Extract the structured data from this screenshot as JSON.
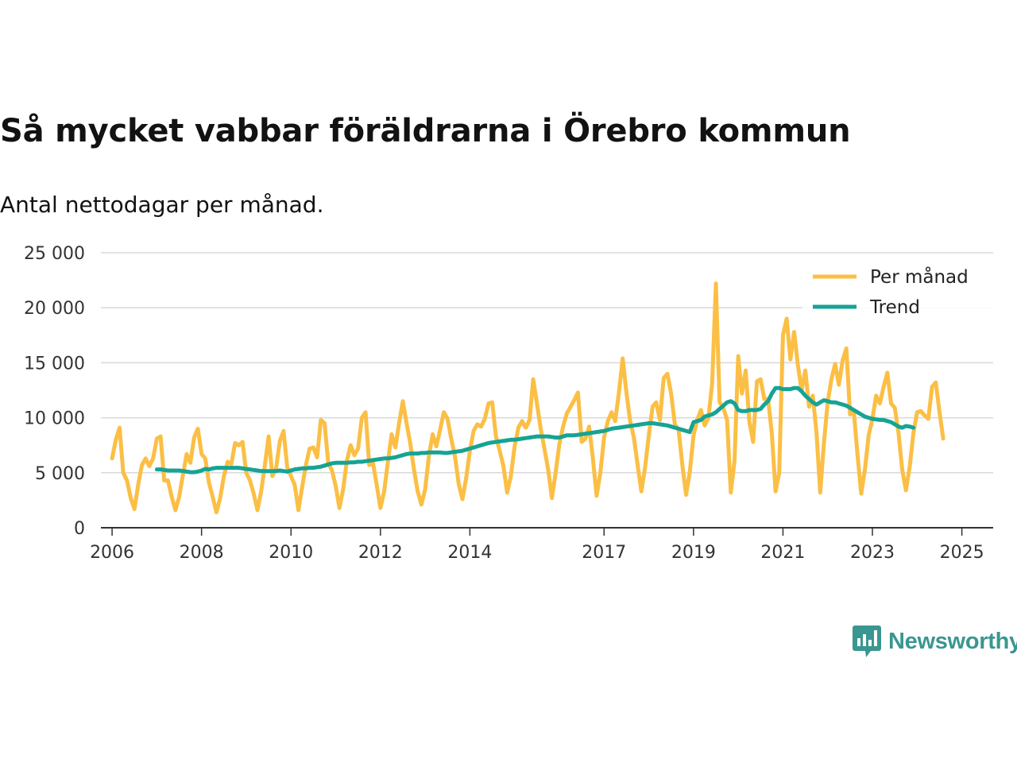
{
  "title": "Så mycket vabbar föräldrarna i Örebro kommun",
  "subtitle": "Antal nettodagar per månad.",
  "brand": {
    "name": "Newsworthy",
    "icon": "newsworthy-logo-icon",
    "color": "#3a9690"
  },
  "chart_data": {
    "type": "line",
    "title": "Så mycket vabbar föräldrarna i Örebro kommun",
    "subtitle": "Antal nettodagar per månad.",
    "xlabel": "",
    "ylabel": "",
    "ylim": [
      0,
      25000
    ],
    "xlim": [
      2005.75,
      2025.7
    ],
    "y_ticks": [
      0,
      5000,
      10000,
      15000,
      20000,
      25000
    ],
    "y_tick_labels": [
      "0",
      "5 000",
      "10 000",
      "15 000",
      "20 000",
      "25 000"
    ],
    "x_ticks": [
      2006,
      2008,
      2010,
      2012,
      2014,
      2017,
      2019,
      2021,
      2023,
      2025
    ],
    "x_tick_labels": [
      "2006",
      "2008",
      "2010",
      "2012",
      "2014",
      "2017",
      "2019",
      "2021",
      "2023",
      "2025"
    ],
    "grid": true,
    "legend_position": "top-right",
    "x_start": 2006.0,
    "x_step": 0.0833333,
    "series": [
      {
        "name": "Per månad",
        "color": "#fbbf45",
        "start": 2006.0,
        "step": 0.0833333,
        "values": [
          6300,
          8000,
          9100,
          5000,
          4300,
          2700,
          1700,
          3900,
          5700,
          6300,
          5600,
          6300,
          8100,
          8300,
          4300,
          4300,
          2800,
          1600,
          2800,
          4800,
          6700,
          5900,
          8200,
          9000,
          6700,
          6300,
          4100,
          2800,
          1400,
          2700,
          4700,
          6000,
          5800,
          7700,
          7500,
          7800,
          5000,
          4300,
          3100,
          1600,
          3300,
          5700,
          8300,
          4700,
          5400,
          7900,
          8800,
          5500,
          4700,
          3900,
          1600,
          3700,
          5700,
          7200,
          7300,
          6400,
          9800,
          9500,
          5900,
          5200,
          3800,
          1800,
          3500,
          6100,
          7500,
          6600,
          7200,
          10000,
          10500,
          5700,
          5900,
          3900,
          1800,
          3300,
          6000,
          8500,
          7300,
          9500,
          11500,
          9500,
          7700,
          5300,
          3300,
          2100,
          3500,
          6500,
          8500,
          7400,
          8900,
          10500,
          9900,
          8100,
          6500,
          4000,
          2600,
          4500,
          7000,
          8800,
          9400,
          9200,
          9900,
          11300,
          11400,
          8300,
          7000,
          5600,
          3200,
          4700,
          7400,
          9100,
          9700,
          9100,
          9800,
          13500,
          11300,
          9000,
          7200,
          5300,
          2700,
          5000,
          7600,
          9200,
          10400,
          11000,
          11600,
          12300,
          7800,
          8100,
          9200,
          6300,
          2900,
          5000,
          8200,
          9700,
          10500,
          9700,
          12300,
          15400,
          12300,
          9700,
          8200,
          5700,
          3300,
          5500,
          8400,
          11000,
          11400,
          9800,
          13600,
          14000,
          12200,
          9400,
          8900,
          5700,
          3000,
          5100,
          8400,
          9800,
          10700,
          9300,
          10000,
          13100,
          22200,
          11400,
          10900,
          9800,
          3200,
          6100,
          15600,
          12200,
          14300,
          9600,
          7800,
          13300,
          13500,
          11700,
          11700,
          8600,
          3300,
          5000,
          17500,
          19000,
          15300,
          17800,
          14800,
          12500,
          14300,
          11000,
          12000,
          8600,
          3200,
          7700,
          11400,
          13500,
          14900,
          13000,
          15200,
          16300,
          10300,
          10600,
          6600,
          3100,
          5300,
          8400,
          9900,
          12000,
          11300,
          12800,
          14100,
          11300,
          10900,
          8600,
          5300,
          3400,
          5500,
          8600,
          10500,
          10600,
          10200,
          9900,
          12800,
          13200,
          10500,
          8100
        ]
      },
      {
        "name": "Trend",
        "color": "#16a394",
        "start": 2007.0,
        "step": 0.0833333,
        "values": [
          5300,
          5300,
          5250,
          5200,
          5200,
          5200,
          5200,
          5150,
          5100,
          5050,
          5050,
          5100,
          5200,
          5350,
          5300,
          5400,
          5450,
          5450,
          5450,
          5450,
          5450,
          5450,
          5450,
          5400,
          5350,
          5300,
          5250,
          5200,
          5150,
          5150,
          5150,
          5150,
          5150,
          5200,
          5150,
          5100,
          5200,
          5300,
          5350,
          5400,
          5400,
          5450,
          5450,
          5500,
          5550,
          5650,
          5750,
          5850,
          5900,
          5900,
          5900,
          5900,
          5950,
          5950,
          6000,
          6000,
          6050,
          6100,
          6150,
          6200,
          6250,
          6300,
          6300,
          6350,
          6400,
          6500,
          6600,
          6700,
          6750,
          6750,
          6750,
          6800,
          6800,
          6850,
          6850,
          6850,
          6850,
          6800,
          6800,
          6850,
          6900,
          6950,
          7000,
          7100,
          7200,
          7300,
          7400,
          7500,
          7600,
          7700,
          7750,
          7800,
          7850,
          7900,
          7950,
          8000,
          8000,
          8050,
          8100,
          8150,
          8200,
          8250,
          8300,
          8300,
          8300,
          8300,
          8250,
          8200,
          8200,
          8300,
          8400,
          8400,
          8400,
          8450,
          8500,
          8550,
          8600,
          8650,
          8700,
          8750,
          8800,
          8900,
          9000,
          9050,
          9100,
          9150,
          9200,
          9250,
          9300,
          9350,
          9400,
          9450,
          9500,
          9500,
          9450,
          9400,
          9350,
          9300,
          9200,
          9100,
          9000,
          8900,
          8800,
          8700,
          9600,
          9700,
          9800,
          10100,
          10200,
          10300,
          10500,
          10800,
          11100,
          11400,
          11500,
          11300,
          10700,
          10600,
          10600,
          10700,
          10700,
          10700,
          10800,
          11200,
          11500,
          12200,
          12700,
          12700,
          12600,
          12600,
          12600,
          12700,
          12700,
          12400,
          12000,
          11700,
          11400,
          11200,
          11400,
          11600,
          11500,
          11400,
          11400,
          11300,
          11200,
          11100,
          10900,
          10700,
          10500,
          10300,
          10100,
          10000,
          9900,
          9850,
          9800,
          9800,
          9700,
          9600,
          9400,
          9200,
          9100,
          9250,
          9200,
          9100
        ]
      }
    ]
  }
}
